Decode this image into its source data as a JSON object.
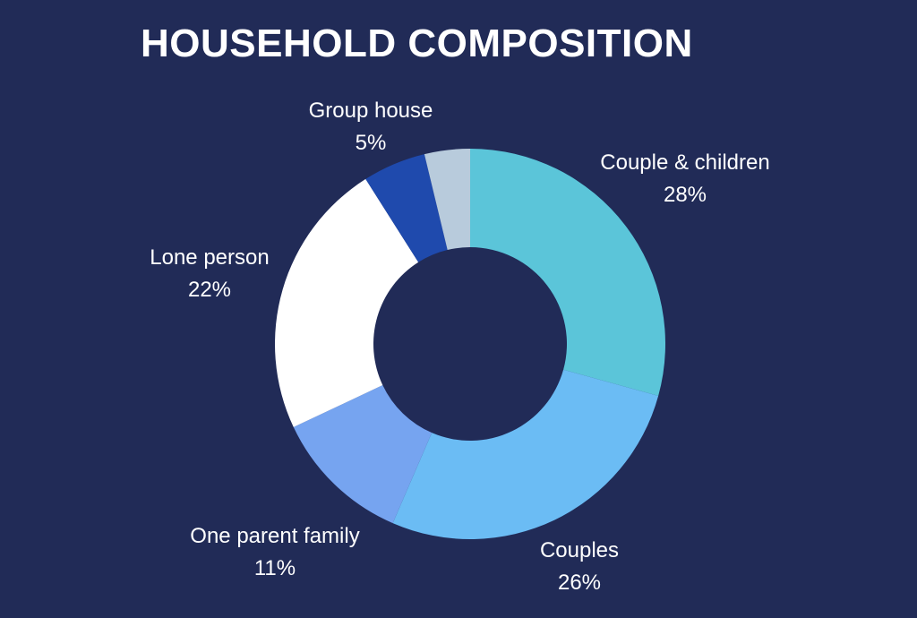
{
  "chart_data": {
    "type": "donut",
    "title": "HOUSEHOLD COMPOSITION",
    "slices": [
      {
        "label": "Couple & children",
        "value": 28,
        "display": "28%",
        "color": "#5bc5d9"
      },
      {
        "label": "Couples",
        "value": 26,
        "display": "26%",
        "color": "#6bbcf4"
      },
      {
        "label": "One parent family",
        "value": 11,
        "display": "11%",
        "color": "#76a4f0"
      },
      {
        "label": "Lone person",
        "value": 22,
        "display": "22%",
        "color": "#ffffff"
      },
      {
        "label": "Group house",
        "value": 5,
        "display": "5%",
        "color": "#1f4aad"
      },
      {
        "label": "",
        "value": 3.6,
        "display": "",
        "color": "#b8cbdc"
      }
    ],
    "background_color": "#212b57"
  }
}
